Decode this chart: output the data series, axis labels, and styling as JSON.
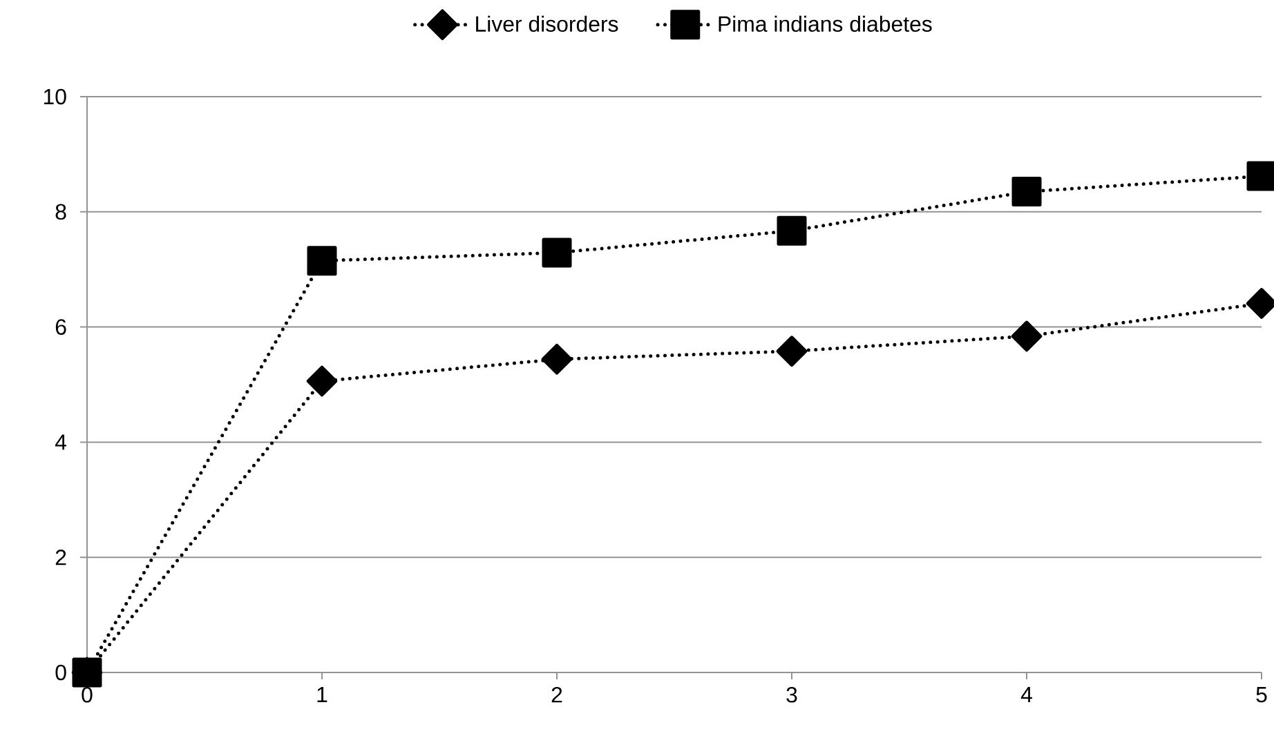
{
  "chart_data": {
    "type": "line",
    "x": [
      0,
      1,
      2,
      3,
      4,
      5
    ],
    "series": [
      {
        "name": "Liver disorders",
        "color": "#000000",
        "marker": "diamond",
        "values": [
          0,
          5.06,
          5.44,
          5.58,
          5.84,
          6.41
        ]
      },
      {
        "name": "Pima indians diabetes",
        "color": "#000000",
        "marker": "square",
        "values": [
          0,
          7.15,
          7.29,
          7.67,
          8.35,
          8.62
        ]
      }
    ],
    "xlim": [
      0,
      5
    ],
    "xticks": [
      0,
      1,
      2,
      3,
      4,
      5
    ],
    "ylim": [
      0,
      10
    ],
    "yticks": [
      0,
      2,
      4,
      6,
      8,
      10
    ],
    "grid": "y",
    "legend": "top",
    "line_style": "dotted"
  }
}
